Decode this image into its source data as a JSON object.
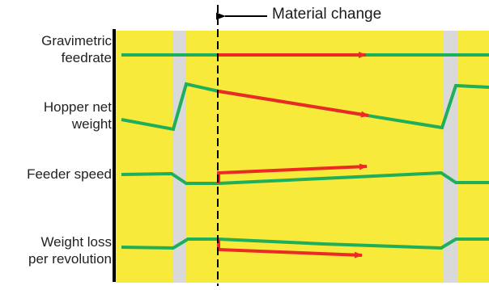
{
  "annotation": {
    "text": "Material change"
  },
  "rows": [
    {
      "label_lines": [
        "Gravimetric",
        "feedrate"
      ]
    },
    {
      "label_lines": [
        "Hopper net",
        "weight"
      ]
    },
    {
      "label_lines": [
        "Feeder speed"
      ]
    },
    {
      "label_lines": [
        "Weight loss",
        "per revolution"
      ]
    }
  ],
  "colors": {
    "background_band": "#f7ea3a",
    "refill_band": "#d9d9d9",
    "signal_line": "#1fae5a",
    "new_material_arrow": "#ec2a24",
    "axis": "#000000"
  }
}
